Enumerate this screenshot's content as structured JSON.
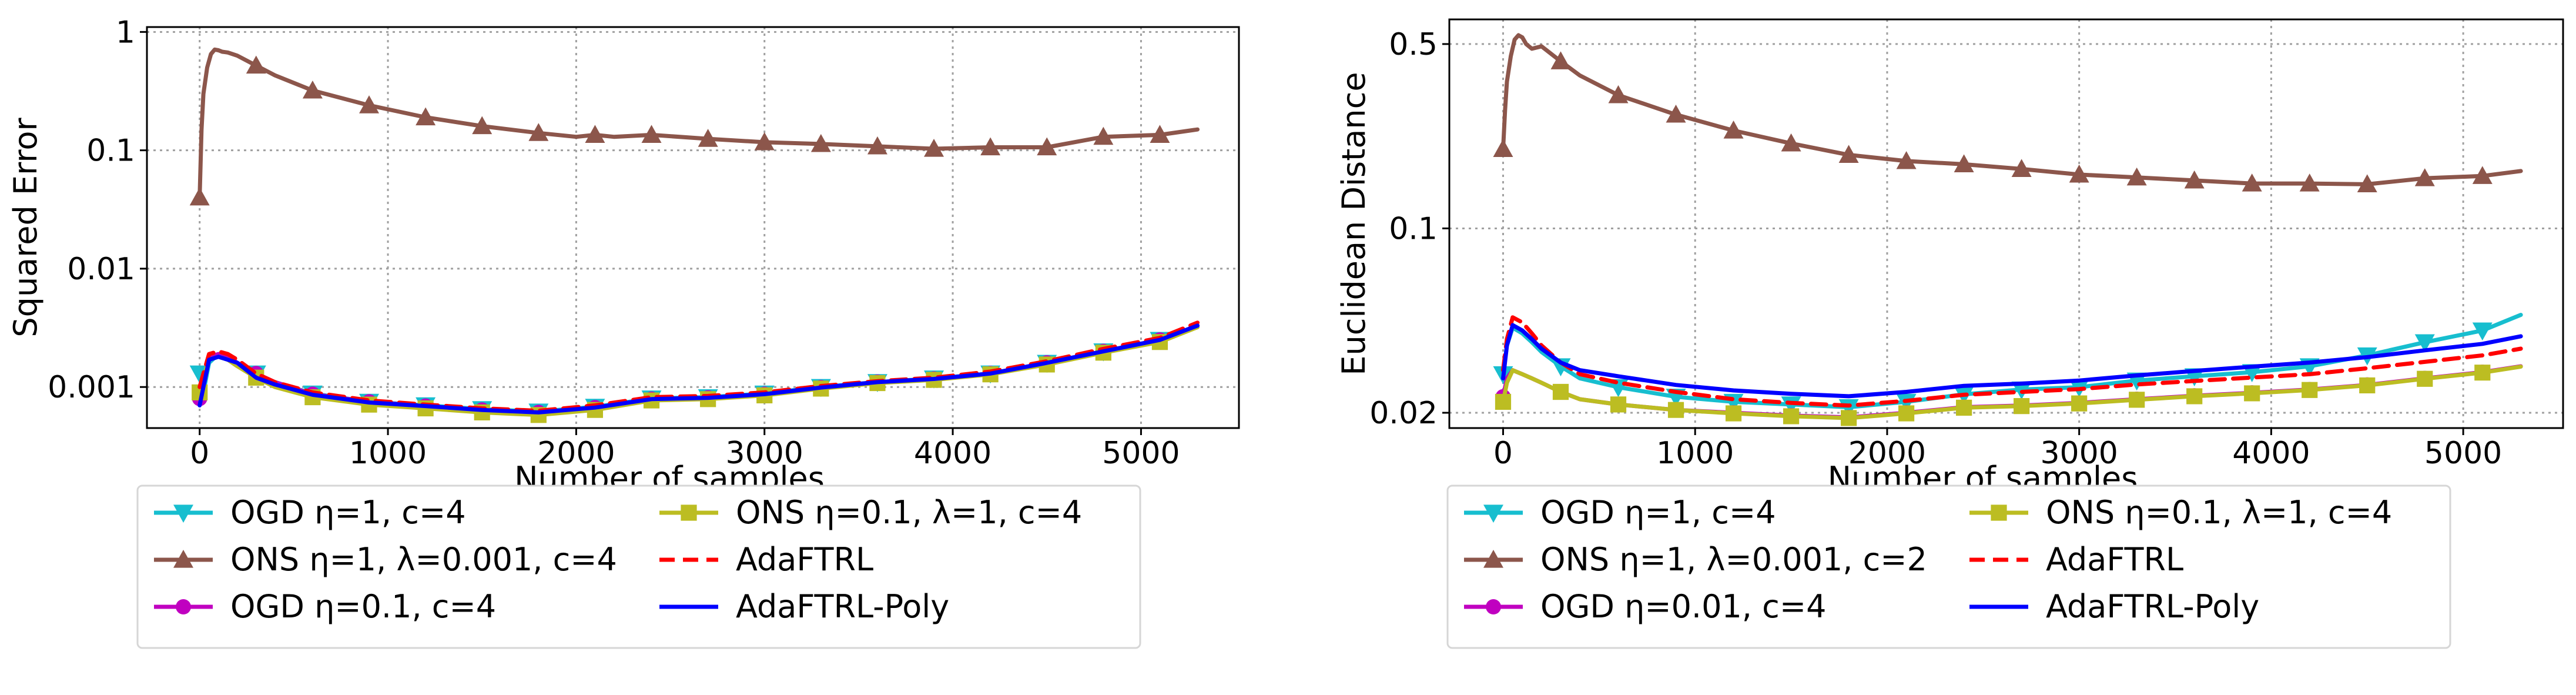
{
  "chart_data": [
    {
      "type": "line",
      "xlabel": "Number of samples",
      "ylabel": "Squared Error",
      "yscale": "log",
      "xlim": [
        -280,
        5520
      ],
      "ylim": [
        0.00045,
        1.1
      ],
      "xticks": [
        0,
        1000,
        2000,
        3000,
        4000,
        5000
      ],
      "xtick_labels": [
        "0",
        "1000",
        "2000",
        "3000",
        "4000",
        "5000"
      ],
      "yticks": [
        0.001,
        0.01,
        0.1,
        1
      ],
      "ytick_labels": [
        "0.001",
        "0.01",
        "0.1",
        "1"
      ],
      "grid": true,
      "legend_position": "below",
      "series": [
        {
          "name": "OGD η=1, c=4",
          "color": "#17becf",
          "marker": "triangle-down",
          "x": [
            0,
            20,
            50,
            100,
            150,
            200,
            300,
            400,
            600,
            900,
            1200,
            1500,
            1800,
            2100,
            2400,
            2700,
            3000,
            3300,
            3600,
            3900,
            4200,
            4500,
            4800,
            5100,
            5300
          ],
          "y": [
            0.0013,
            0.0009,
            0.0016,
            0.0019,
            0.0018,
            0.0016,
            0.0013,
            0.0011,
            0.00088,
            0.00075,
            0.0007,
            0.00065,
            0.00062,
            0.00068,
            0.0008,
            0.00082,
            0.00088,
            0.001,
            0.0011,
            0.00118,
            0.0013,
            0.0016,
            0.002,
            0.0025,
            0.0033
          ]
        },
        {
          "name": "ONS η=1, λ=0.001, c=4",
          "color": "#8c564b",
          "marker": "triangle-up",
          "x": [
            0,
            10,
            20,
            40,
            60,
            80,
            100,
            120,
            150,
            200,
            300,
            400,
            600,
            900,
            1200,
            1500,
            1800,
            2000,
            2100,
            2200,
            2400,
            2700,
            3000,
            3300,
            3600,
            3900,
            4200,
            4500,
            4800,
            5100,
            5300
          ],
          "y": [
            0.04,
            0.15,
            0.3,
            0.5,
            0.65,
            0.71,
            0.7,
            0.68,
            0.67,
            0.63,
            0.52,
            0.43,
            0.32,
            0.24,
            0.19,
            0.16,
            0.14,
            0.13,
            0.135,
            0.13,
            0.135,
            0.125,
            0.117,
            0.113,
            0.108,
            0.103,
            0.106,
            0.106,
            0.13,
            0.135,
            0.15
          ]
        },
        {
          "name": "OGD η=0.1, c=4",
          "color": "#c000c0",
          "marker": "circle",
          "x": [
            0,
            20,
            50,
            100,
            150,
            200,
            300,
            400,
            600,
            900,
            1200,
            1500,
            1800,
            2100,
            2400,
            2700,
            3000,
            3300,
            3600,
            3900,
            4200,
            4500,
            4800,
            5100,
            5300
          ],
          "y": [
            0.0008,
            0.0011,
            0.0018,
            0.0019,
            0.0018,
            0.0016,
            0.0013,
            0.0011,
            0.00087,
            0.00075,
            0.00069,
            0.00064,
            0.00061,
            0.00067,
            0.00079,
            0.00081,
            0.00087,
            0.00099,
            0.0011,
            0.00117,
            0.0013,
            0.0016,
            0.002,
            0.0025,
            0.0033
          ]
        },
        {
          "name": "ONS η=0.1, λ=1, c=4",
          "color": "#bcbd22",
          "marker": "square",
          "x": [
            0,
            20,
            50,
            100,
            150,
            200,
            300,
            400,
            600,
            900,
            1200,
            1500,
            1800,
            2100,
            2400,
            2700,
            3000,
            3300,
            3600,
            3900,
            4200,
            4500,
            4800,
            5100,
            5300
          ],
          "y": [
            0.0009,
            0.0012,
            0.0017,
            0.0018,
            0.0017,
            0.0015,
            0.0012,
            0.001,
            0.00082,
            0.00071,
            0.00066,
            0.00061,
            0.00058,
            0.00064,
            0.00077,
            0.00079,
            0.00085,
            0.00097,
            0.00108,
            0.00115,
            0.00128,
            0.00155,
            0.00195,
            0.0024,
            0.0032
          ]
        },
        {
          "name": "AdaFTRL",
          "color": "#ff0000",
          "marker": "none",
          "dashed": true,
          "x": [
            0,
            20,
            50,
            100,
            150,
            200,
            300,
            400,
            600,
            900,
            1200,
            1500,
            1800,
            2100,
            2400,
            2700,
            3000,
            3300,
            3600,
            3900,
            4200,
            4500,
            4800,
            5100,
            5300
          ],
          "y": [
            0.001,
            0.0013,
            0.0019,
            0.002,
            0.0019,
            0.0017,
            0.0013,
            0.0011,
            0.0009,
            0.00077,
            0.00071,
            0.00066,
            0.00063,
            0.0007,
            0.00082,
            0.00084,
            0.0009,
            0.00102,
            0.00112,
            0.0012,
            0.00135,
            0.00165,
            0.0021,
            0.0026,
            0.0035
          ]
        },
        {
          "name": "AdaFTRL-Poly",
          "color": "#0000ff",
          "marker": "none",
          "x": [
            0,
            20,
            50,
            100,
            150,
            200,
            300,
            400,
            600,
            900,
            1200,
            1500,
            1800,
            2100,
            2400,
            2700,
            3000,
            3300,
            3600,
            3900,
            4200,
            4500,
            4800,
            5100,
            5300
          ],
          "y": [
            0.0007,
            0.001,
            0.0017,
            0.0018,
            0.0017,
            0.0016,
            0.0012,
            0.00105,
            0.00086,
            0.00074,
            0.00069,
            0.00064,
            0.00061,
            0.00067,
            0.00079,
            0.00081,
            0.00087,
            0.00099,
            0.0011,
            0.00117,
            0.0013,
            0.0016,
            0.002,
            0.0025,
            0.0033
          ]
        }
      ]
    },
    {
      "type": "line",
      "xlabel": "Number of samples",
      "ylabel": "Euclidean Distance",
      "yscale": "log",
      "xlim": [
        -280,
        5520
      ],
      "ylim": [
        0.0175,
        0.62
      ],
      "xticks": [
        0,
        1000,
        2000,
        3000,
        4000,
        5000
      ],
      "xtick_labels": [
        "0",
        "1000",
        "2000",
        "3000",
        "4000",
        "5000"
      ],
      "yticks": [
        0.02,
        0.1,
        0.5
      ],
      "ytick_labels": [
        "0.02",
        "0.1",
        "0.5"
      ],
      "grid": true,
      "legend_position": "below",
      "series": [
        {
          "name": "OGD η=1, c=4",
          "color": "#17becf",
          "marker": "triangle-down",
          "x": [
            0,
            20,
            50,
            100,
            150,
            200,
            300,
            400,
            600,
            900,
            1200,
            1500,
            1800,
            2100,
            2400,
            2700,
            3000,
            3300,
            3600,
            3900,
            4200,
            4500,
            4800,
            5100,
            5300
          ],
          "y": [
            0.028,
            0.036,
            0.042,
            0.04,
            0.037,
            0.034,
            0.03,
            0.027,
            0.025,
            0.023,
            0.022,
            0.0215,
            0.021,
            0.022,
            0.0235,
            0.0245,
            0.025,
            0.0265,
            0.0275,
            0.0285,
            0.03,
            0.033,
            0.037,
            0.041,
            0.047
          ]
        },
        {
          "name": "ONS η=1, λ=0.001, c=2",
          "color": "#8c564b",
          "marker": "triangle-up",
          "x": [
            0,
            10,
            20,
            40,
            60,
            80,
            100,
            120,
            150,
            200,
            300,
            400,
            600,
            900,
            1200,
            1500,
            1800,
            2100,
            2400,
            2700,
            3000,
            3300,
            3600,
            3900,
            4200,
            4500,
            4800,
            5100,
            5300
          ],
          "y": [
            0.2,
            0.28,
            0.36,
            0.45,
            0.52,
            0.54,
            0.53,
            0.5,
            0.48,
            0.49,
            0.43,
            0.38,
            0.32,
            0.27,
            0.235,
            0.21,
            0.19,
            0.18,
            0.175,
            0.168,
            0.16,
            0.156,
            0.152,
            0.148,
            0.148,
            0.147,
            0.155,
            0.158,
            0.165
          ]
        },
        {
          "name": "OGD η=0.01, c=4",
          "color": "#c000c0",
          "marker": "circle",
          "x": [
            0,
            20,
            50,
            100,
            150,
            200,
            300,
            400,
            600,
            900,
            1200,
            1500,
            1800,
            2100,
            2400,
            2700,
            3000,
            3300,
            3600,
            3900,
            4200,
            4500,
            4800,
            5100,
            5300
          ],
          "y": [
            0.023,
            0.027,
            0.029,
            0.028,
            0.027,
            0.026,
            0.024,
            0.0225,
            0.0215,
            0.0205,
            0.02,
            0.0195,
            0.0192,
            0.02,
            0.021,
            0.0213,
            0.0218,
            0.0225,
            0.0232,
            0.0238,
            0.0245,
            0.0255,
            0.027,
            0.0285,
            0.03
          ]
        },
        {
          "name": "ONS η=0.1, λ=1, c=4",
          "color": "#bcbd22",
          "marker": "square",
          "x": [
            0,
            20,
            50,
            100,
            150,
            200,
            300,
            400,
            600,
            900,
            1200,
            1500,
            1800,
            2100,
            2400,
            2700,
            3000,
            3300,
            3600,
            3900,
            4200,
            4500,
            4800,
            5100,
            5300
          ],
          "y": [
            0.022,
            0.026,
            0.029,
            0.028,
            0.027,
            0.026,
            0.024,
            0.0225,
            0.0215,
            0.0205,
            0.0199,
            0.0194,
            0.0191,
            0.0199,
            0.0209,
            0.0212,
            0.0217,
            0.0224,
            0.0231,
            0.0237,
            0.0244,
            0.0254,
            0.0269,
            0.0284,
            0.0299
          ]
        },
        {
          "name": "AdaFTRL",
          "color": "#ff0000",
          "marker": "none",
          "dashed": true,
          "x": [
            0,
            20,
            50,
            100,
            150,
            200,
            300,
            400,
            600,
            900,
            1200,
            1500,
            1800,
            2100,
            2400,
            2700,
            3000,
            3300,
            3600,
            3900,
            4200,
            4500,
            4800,
            5100,
            5300
          ],
          "y": [
            0.029,
            0.038,
            0.046,
            0.044,
            0.04,
            0.036,
            0.031,
            0.028,
            0.026,
            0.024,
            0.0225,
            0.0218,
            0.0213,
            0.0222,
            0.0234,
            0.024,
            0.0246,
            0.0256,
            0.0264,
            0.0272,
            0.028,
            0.0295,
            0.0312,
            0.033,
            0.035
          ]
        },
        {
          "name": "AdaFTRL-Poly",
          "color": "#0000ff",
          "marker": "none",
          "x": [
            0,
            20,
            50,
            100,
            150,
            200,
            300,
            400,
            600,
            900,
            1200,
            1500,
            1800,
            2100,
            2400,
            2700,
            3000,
            3300,
            3600,
            3900,
            4200,
            4500,
            4800,
            5100,
            5300
          ],
          "y": [
            0.027,
            0.036,
            0.043,
            0.041,
            0.038,
            0.035,
            0.031,
            0.029,
            0.0275,
            0.0255,
            0.0243,
            0.0236,
            0.0231,
            0.024,
            0.0253,
            0.0258,
            0.0265,
            0.0277,
            0.0288,
            0.0299,
            0.031,
            0.0325,
            0.0345,
            0.0365,
            0.039
          ]
        }
      ]
    }
  ]
}
